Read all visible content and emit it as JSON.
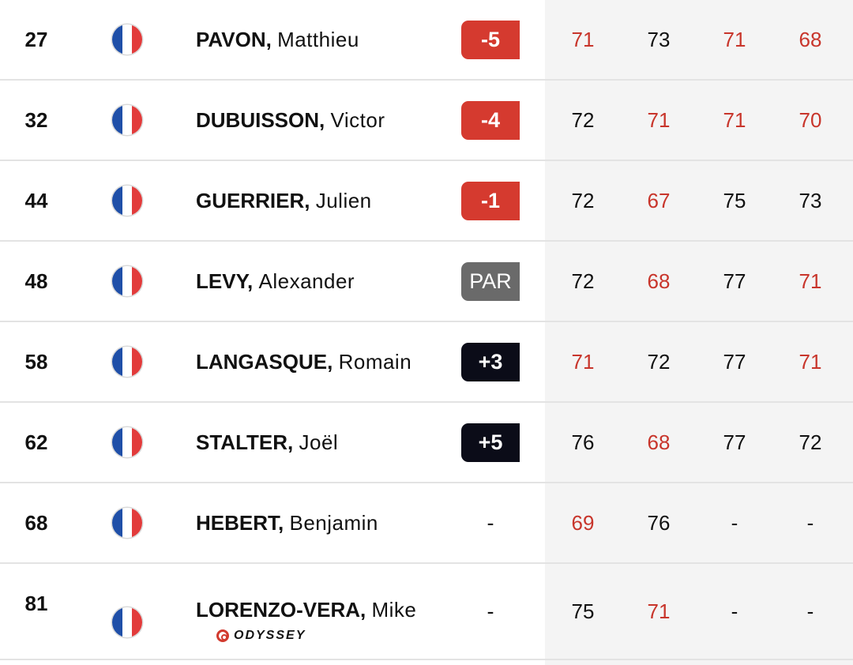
{
  "colors": {
    "under_par": "#d53a2f",
    "par": "#6a6a6a",
    "over_par": "#0b0c18",
    "under_par_round": "#c8352b",
    "rounds_background": "#f4f4f4"
  },
  "players": [
    {
      "pos": "27",
      "flag": "france-flag-icon",
      "last": "PAVON,",
      "first": "Matthieu",
      "score": "-5",
      "score_type": "under",
      "rounds": [
        {
          "v": "71",
          "red": true
        },
        {
          "v": "73",
          "red": false
        },
        {
          "v": "71",
          "red": true
        },
        {
          "v": "68",
          "red": true
        }
      ]
    },
    {
      "pos": "32",
      "flag": "france-flag-icon",
      "last": "DUBUISSON,",
      "first": "Victor",
      "score": "-4",
      "score_type": "under",
      "rounds": [
        {
          "v": "72",
          "red": false
        },
        {
          "v": "71",
          "red": true
        },
        {
          "v": "71",
          "red": true
        },
        {
          "v": "70",
          "red": true
        }
      ]
    },
    {
      "pos": "44",
      "flag": "france-flag-icon",
      "last": "GUERRIER,",
      "first": "Julien",
      "score": "-1",
      "score_type": "under",
      "rounds": [
        {
          "v": "72",
          "red": false
        },
        {
          "v": "67",
          "red": true
        },
        {
          "v": "75",
          "red": false
        },
        {
          "v": "73",
          "red": false
        }
      ]
    },
    {
      "pos": "48",
      "flag": "france-flag-icon",
      "last": "LEVY,",
      "first": "Alexander",
      "score": "PAR",
      "score_type": "par",
      "rounds": [
        {
          "v": "72",
          "red": false
        },
        {
          "v": "68",
          "red": true
        },
        {
          "v": "77",
          "red": false
        },
        {
          "v": "71",
          "red": true
        }
      ]
    },
    {
      "pos": "58",
      "flag": "france-flag-icon",
      "last": "LANGASQUE,",
      "first": "Romain",
      "score": "+3",
      "score_type": "over",
      "rounds": [
        {
          "v": "71",
          "red": true
        },
        {
          "v": "72",
          "red": false
        },
        {
          "v": "77",
          "red": false
        },
        {
          "v": "71",
          "red": true
        }
      ]
    },
    {
      "pos": "62",
      "flag": "france-flag-icon",
      "last": "STALTER,",
      "first": "Joël",
      "score": "+5",
      "score_type": "over",
      "rounds": [
        {
          "v": "76",
          "red": false
        },
        {
          "v": "68",
          "red": true
        },
        {
          "v": "77",
          "red": false
        },
        {
          "v": "72",
          "red": false
        }
      ]
    },
    {
      "pos": "68",
      "flag": "france-flag-icon",
      "last": "HEBERT,",
      "first": "Benjamin",
      "score": "-",
      "score_type": "none",
      "rounds": [
        {
          "v": "69",
          "red": true
        },
        {
          "v": "76",
          "red": false
        },
        {
          "v": "-",
          "red": false
        },
        {
          "v": "-",
          "red": false
        }
      ]
    },
    {
      "pos": "81",
      "flag": "france-flag-icon",
      "last": "LORENZO-VERA,",
      "first": "Mike",
      "score": "-",
      "score_type": "none",
      "sponsor": "ODYSSEY",
      "rounds": [
        {
          "v": "75",
          "red": false
        },
        {
          "v": "71",
          "red": true
        },
        {
          "v": "-",
          "red": false
        },
        {
          "v": "-",
          "red": false
        }
      ]
    }
  ]
}
